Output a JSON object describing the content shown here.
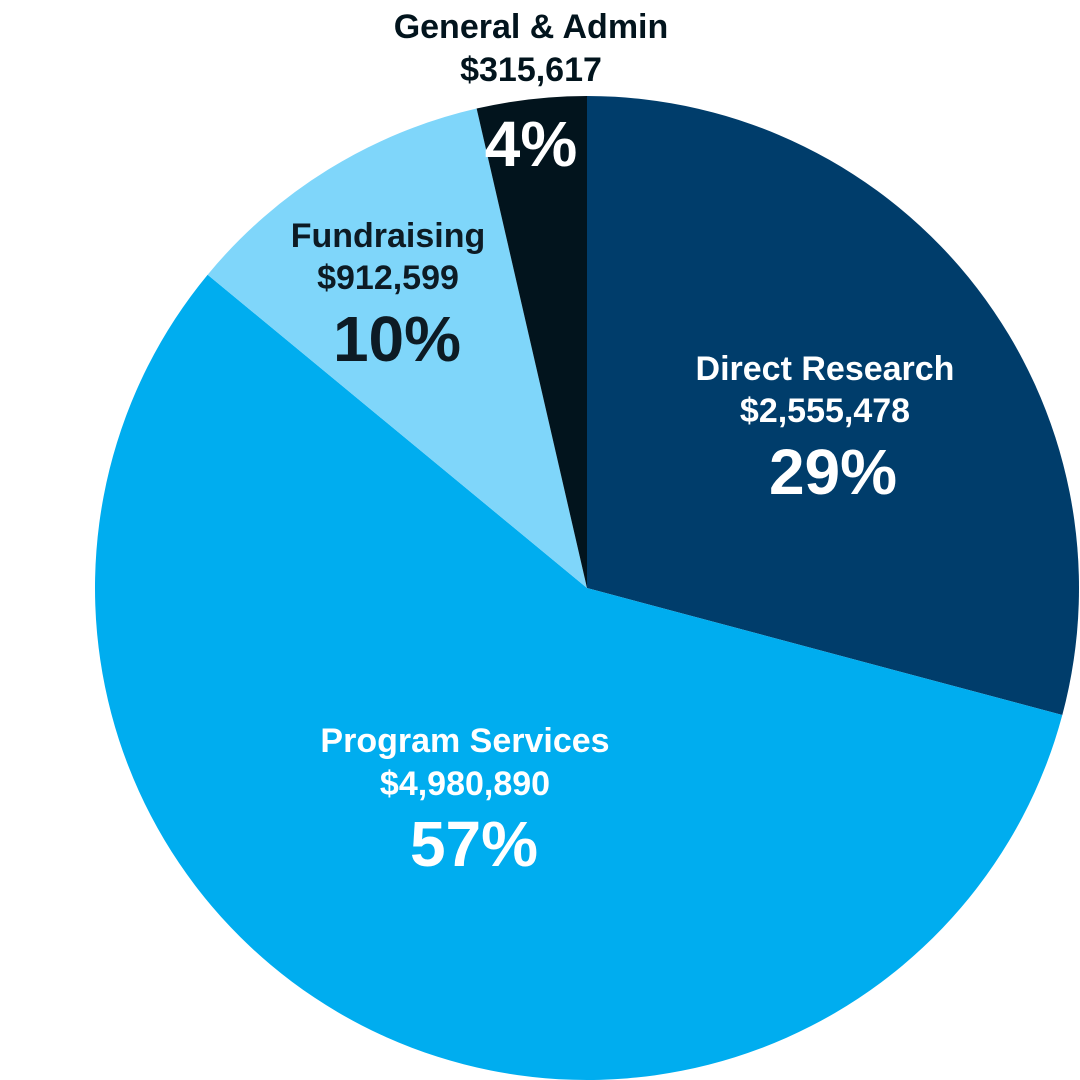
{
  "chart_data": {
    "type": "pie",
    "slices": [
      {
        "label": "Direct Research",
        "amount": "$2,555,478",
        "percent_label": "29%",
        "value": 2555478,
        "color": "#003d6b",
        "text_color": "#ffffff"
      },
      {
        "label": "Program Services",
        "amount": "$4,980,890",
        "percent_label": "57%",
        "value": 4980890,
        "color": "#00adef",
        "text_color": "#ffffff"
      },
      {
        "label": "Fundraising",
        "amount": "$912,599",
        "percent_label": "10%",
        "value": 912599,
        "color": "#7fd6fa",
        "text_color": "#0d1b24"
      },
      {
        "label": "General & Admin",
        "amount": "$315,617",
        "percent_label": "4%",
        "value": 315617,
        "color": "#02141d",
        "text_color": "#ffffff"
      }
    ],
    "start": "12 o'clock",
    "direction": "clockwise"
  }
}
